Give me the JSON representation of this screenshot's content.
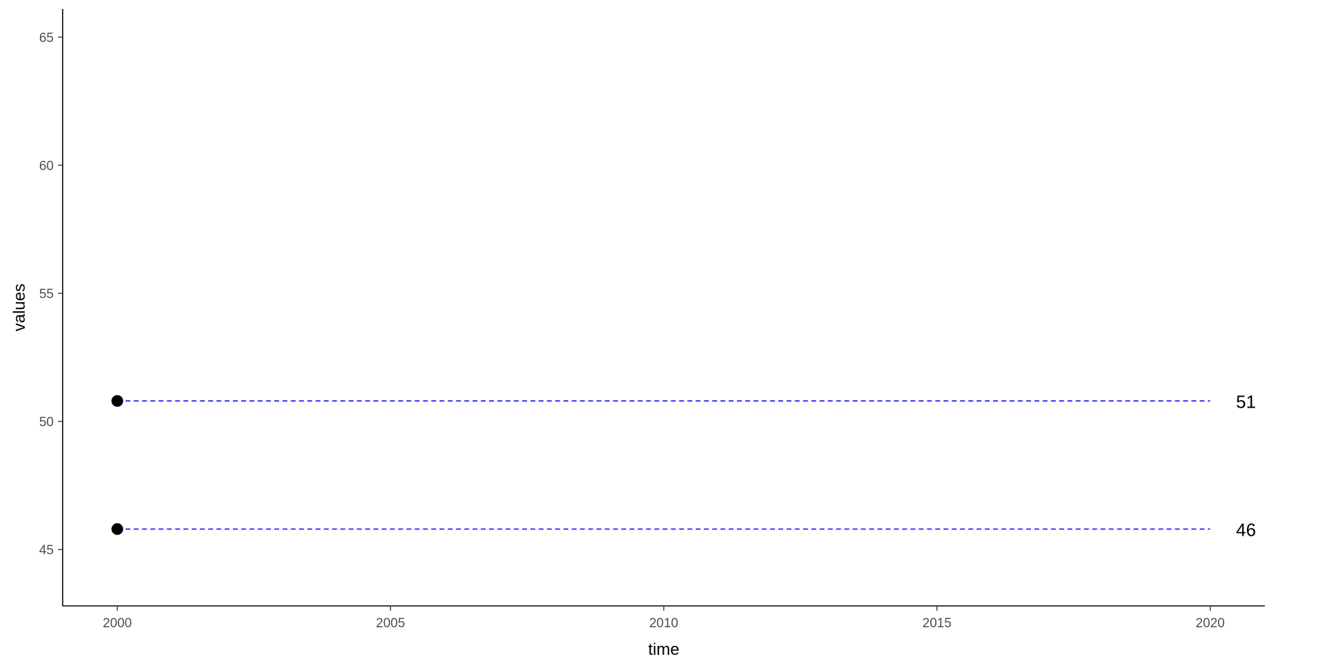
{
  "chart_data": {
    "type": "scatter",
    "title": "",
    "xlabel": "time",
    "ylabel": "values",
    "xlim": [
      1999,
      2021
    ],
    "ylim": [
      42.8,
      66.1
    ],
    "x_ticks": [
      2000,
      2005,
      2010,
      2015,
      2020
    ],
    "y_ticks": [
      45,
      50,
      55,
      60,
      65
    ],
    "grid": false,
    "legend": "none",
    "series": [
      {
        "x": [
          2000
        ],
        "y": [
          50.8
        ],
        "reference_line": {
          "from_x": 2000,
          "to_x": 2020,
          "y": 50.8,
          "style": "dashed",
          "color": "#0000ff"
        },
        "end_label": "51"
      },
      {
        "x": [
          2000
        ],
        "y": [
          45.8
        ],
        "reference_line": {
          "from_x": 2000,
          "to_x": 2020,
          "y": 45.8,
          "style": "dashed",
          "color": "#0000ff"
        },
        "end_label": "46"
      }
    ],
    "point_color": "#000000",
    "axis_color": "#000000"
  }
}
